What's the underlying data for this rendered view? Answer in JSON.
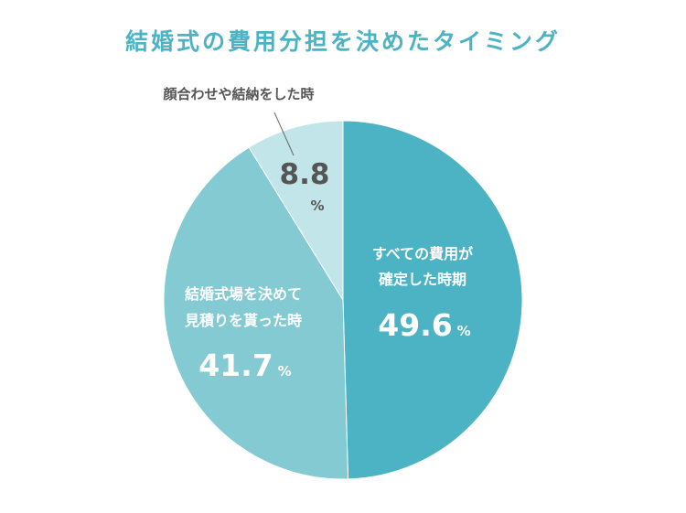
{
  "chart_data": {
    "type": "pie",
    "title": "結婚式の費用分担を決めたタイミング",
    "slices": [
      {
        "label_lines": [
          "すべての費用が",
          "確定した時期"
        ],
        "value": 49.6,
        "value_text": "49.6",
        "unit": "%",
        "color": "#4bb3c3",
        "label_color": "#ffffff"
      },
      {
        "label_lines": [
          "結婚式場を決めて",
          "見積りを貰った時"
        ],
        "value": 41.7,
        "value_text": "41.7",
        "unit": "%",
        "color": "#84cad3",
        "label_color": "#ffffff"
      },
      {
        "label_lines": [
          "顔合わせや結納をした時"
        ],
        "value": 8.8,
        "value_text": "8.8",
        "unit": "%",
        "color": "#c2e5ea",
        "label_color": "#555555"
      }
    ],
    "legend": "none"
  }
}
